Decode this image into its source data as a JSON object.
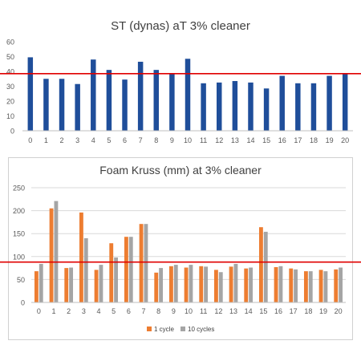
{
  "chart_data": [
    {
      "type": "bar",
      "title": "ST (dynas) aT  3% cleaner",
      "categories": [
        "0",
        "1",
        "2",
        "3",
        "4",
        "5",
        "6",
        "7",
        "8",
        "9",
        "10",
        "11",
        "12",
        "13",
        "14",
        "15",
        "16",
        "17",
        "18",
        "19",
        "20"
      ],
      "series": [
        {
          "values": [
            49.5,
            35,
            35,
            31.5,
            48,
            41,
            34.5,
            46.5,
            41,
            38.5,
            48.5,
            32,
            32.5,
            33.5,
            32.5,
            28.5,
            37,
            32,
            32,
            37,
            38.5
          ]
        }
      ],
      "ylim": [
        0,
        60
      ],
      "yticks": [
        "0",
        "10",
        "20",
        "30",
        "40",
        "50",
        "60"
      ],
      "reference_line": 38.5,
      "colors": {
        "bar": "#1f4e9a",
        "reference_line": "#e00000"
      },
      "grid": false,
      "legend": "none"
    },
    {
      "type": "bar",
      "title": "Foam Kruss (mm) at 3% cleaner",
      "categories": [
        "0",
        "1",
        "2",
        "3",
        "4",
        "5",
        "6",
        "7",
        "8",
        "9",
        "10",
        "11",
        "12",
        "13",
        "14",
        "15",
        "16",
        "17",
        "18",
        "19",
        "20"
      ],
      "series": [
        {
          "name": "1 cycle",
          "values": [
            68,
            205,
            75,
            196,
            71,
            129,
            143,
            171,
            65,
            79,
            76,
            79,
            71,
            78,
            74,
            164,
            77,
            74,
            68,
            71,
            72
          ]
        },
        {
          "name": "10 cycles",
          "values": [
            84,
            221,
            76,
            140,
            82,
            98,
            143,
            171,
            75,
            82,
            82,
            78,
            66,
            84,
            76,
            154,
            79,
            72,
            68,
            68,
            76
          ]
        }
      ],
      "ylim": [
        0,
        250
      ],
      "yticks": [
        "0",
        "50",
        "100",
        "150",
        "200",
        "250"
      ],
      "reference_line": 88,
      "colors": {
        "1 cycle": "#ed7d31",
        "10 cycles": "#a5a5a5",
        "reference_line": "#e00000",
        "grid": "#d9d9d9"
      },
      "grid": true,
      "legend": "bottom-center"
    }
  ]
}
